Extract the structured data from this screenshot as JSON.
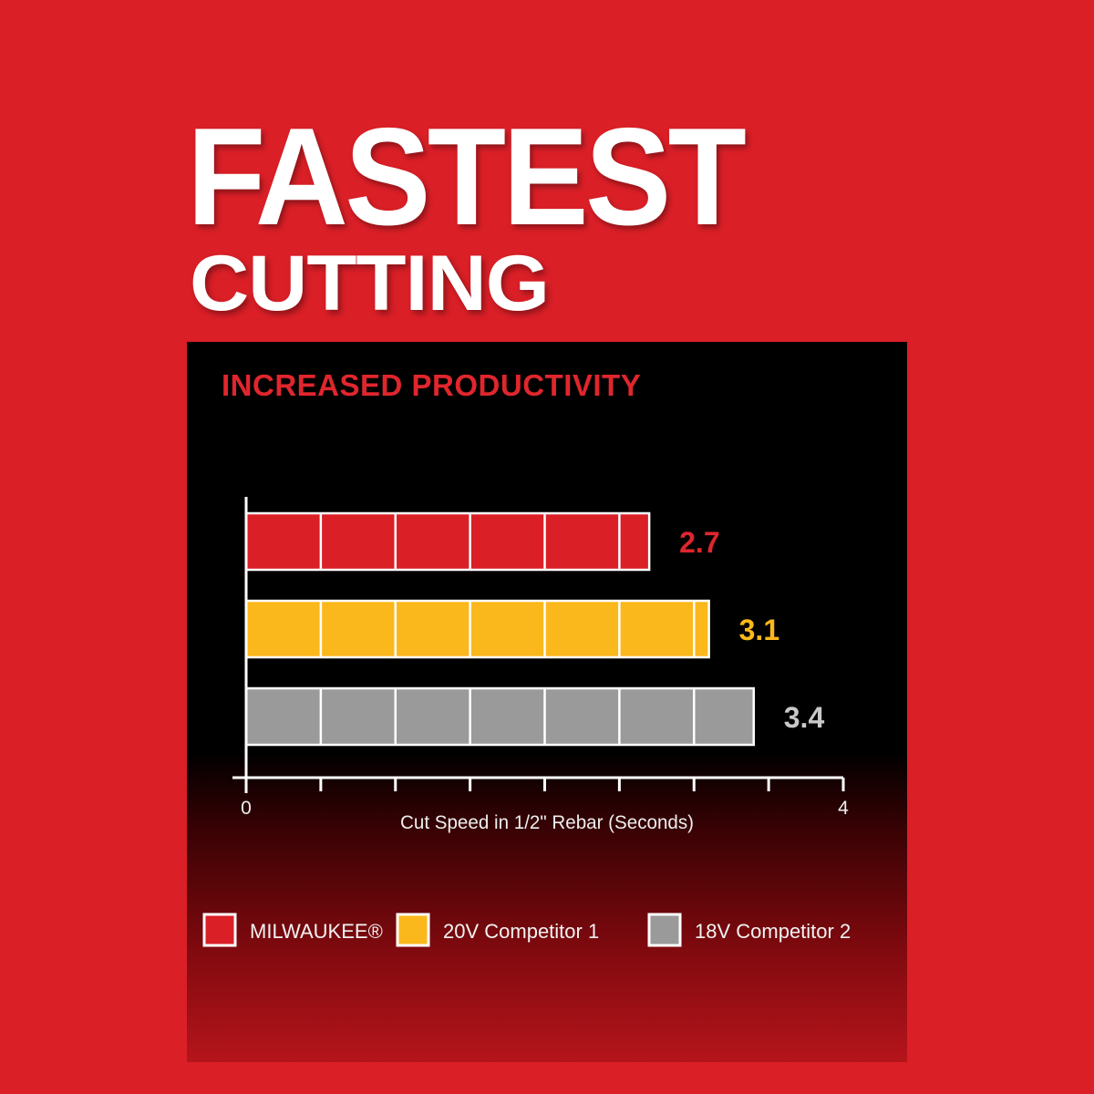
{
  "header": {
    "title_line1": "FASTEST",
    "title_line2": "CUTTING"
  },
  "panel": {
    "subtitle": "INCREASED PRODUCTIVITY"
  },
  "chart_data": {
    "type": "bar",
    "orientation": "horizontal",
    "categories": [
      "MILWAUKEE®",
      "20V Competitor 1",
      "18V Competitor 2"
    ],
    "values": [
      2.7,
      3.1,
      3.4
    ],
    "value_labels": [
      "2.7",
      "3.1",
      "3.4"
    ],
    "colors": [
      "#da1f27",
      "#fbb81c",
      "#9a9a9a"
    ],
    "label_colors": [
      "#e0262d",
      "#fbb81c",
      "#c8c8c8"
    ],
    "xlabel": "Cut Speed in 1/2\" Rebar (Seconds)",
    "xlim": [
      0,
      4
    ],
    "x_tick_step": 0.5,
    "x_tick_labels": [
      "0",
      "4"
    ],
    "grid": false,
    "legend": {
      "position": "bottom",
      "entries": [
        "MILWAUKEE®",
        "20V Competitor 1",
        "18V Competitor 2"
      ]
    }
  }
}
